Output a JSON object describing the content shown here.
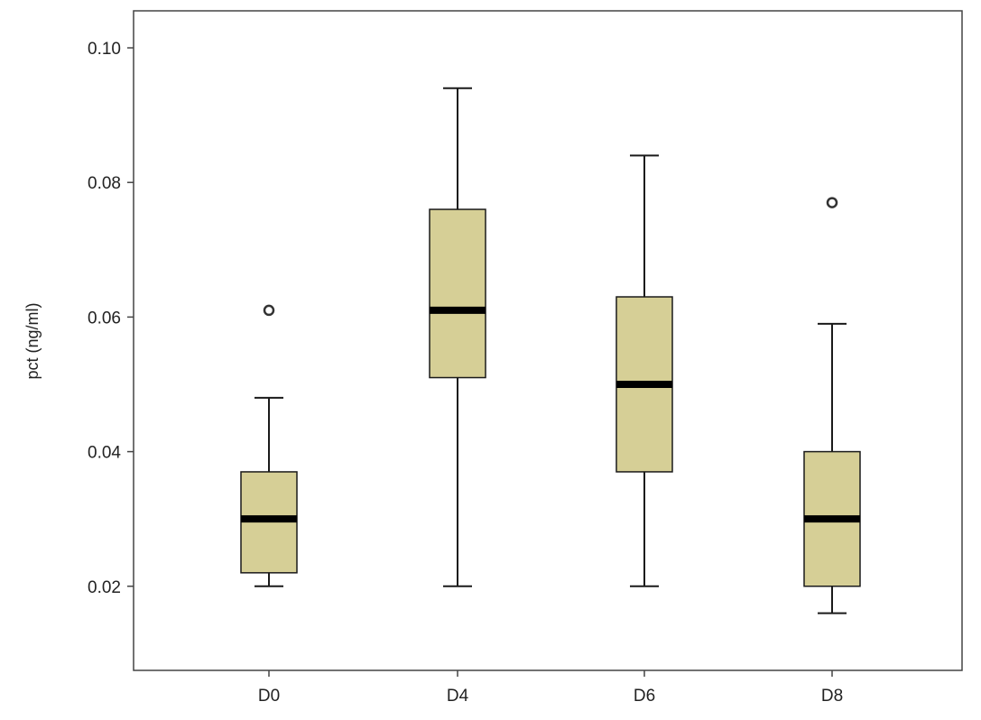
{
  "chart_data": {
    "type": "boxplot",
    "title": "",
    "xlabel": "",
    "ylabel": "pct  (ng/ml)",
    "ylim": [
      0.0075,
      0.1055
    ],
    "yticks": [
      0.02,
      0.04,
      0.06,
      0.08,
      0.1
    ],
    "ytick_labels": [
      "0.02",
      "0.04",
      "0.06",
      "0.08",
      "0.10"
    ],
    "grid": false,
    "legend": "none",
    "box_color": "#d6cf96",
    "line_color": "#1a1a1a",
    "categories": [
      "D0",
      "D4",
      "D6",
      "D8"
    ],
    "boxes": [
      {
        "category": "D0",
        "whisker_low": 0.02,
        "q1": 0.022,
        "median": 0.03,
        "q3": 0.037,
        "whisker_high": 0.048,
        "outliers": [
          0.061
        ]
      },
      {
        "category": "D4",
        "whisker_low": 0.02,
        "q1": 0.051,
        "median": 0.061,
        "q3": 0.076,
        "whisker_high": 0.094,
        "outliers": []
      },
      {
        "category": "D6",
        "whisker_low": 0.02,
        "q1": 0.037,
        "median": 0.05,
        "q3": 0.063,
        "whisker_high": 0.084,
        "outliers": []
      },
      {
        "category": "D8",
        "whisker_low": 0.016,
        "q1": 0.02,
        "median": 0.03,
        "q3": 0.04,
        "whisker_high": 0.059,
        "outliers": [
          0.077
        ]
      }
    ]
  }
}
